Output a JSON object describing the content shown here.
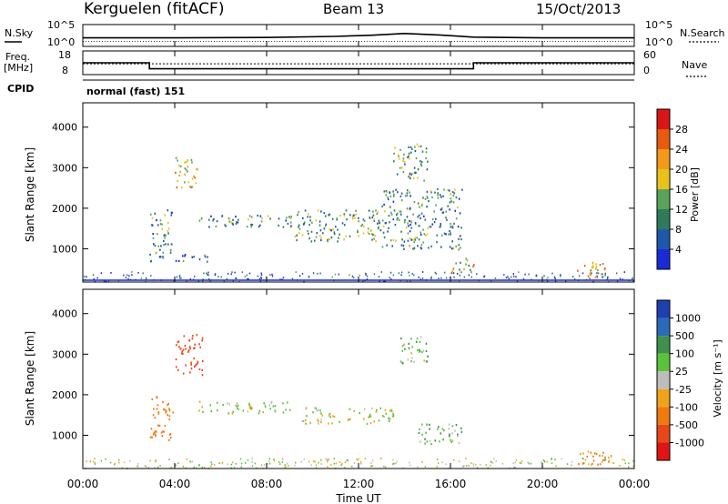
{
  "header": {
    "site": "Kerguelen (fitACF)",
    "beam": "Beam 13",
    "date": "15/Oct/2013"
  },
  "noise_panel": {
    "left_label": "N.Sky",
    "right_label": "N.Search",
    "left_ticks": [
      "10^5",
      "10^0"
    ],
    "right_ticks": [
      "10^5",
      "10^0"
    ]
  },
  "freq_panel": {
    "left_label_line1": "Freq.",
    "left_label_line2": "[MHz]",
    "right_label": "Nave",
    "left_ticks": [
      "18",
      "8"
    ],
    "right_ticks": [
      "60",
      "0"
    ],
    "cpid_label": "CPID",
    "cpid_value": "normal (fast) 151"
  },
  "x_axis": {
    "tick_labels": [
      "00:00",
      "04:00",
      "08:00",
      "12:00",
      "16:00",
      "20:00",
      "00:00"
    ],
    "title": "Time UT"
  },
  "power_panel": {
    "ylabel": "Slant Range [km]",
    "yticks": [
      "1000",
      "2000",
      "3000",
      "4000"
    ],
    "colorbar_label": "Power [dB]",
    "colorbar_ticks": [
      "4",
      "8",
      "12",
      "16",
      "20",
      "24",
      "28"
    ],
    "colors": [
      "#1a2bd6",
      "#1f58a8",
      "#2f7a5a",
      "#5aa35a",
      "#e8c21a",
      "#f39a1b",
      "#e85a10",
      "#d81616"
    ]
  },
  "velocity_panel": {
    "ylabel": "Slant Range [km]",
    "yticks": [
      "1000",
      "2000",
      "3000",
      "4000"
    ],
    "colorbar_label": "Velocity [m s⁻¹]",
    "colorbar_ticks": [
      "1000",
      "500",
      "100",
      "25",
      "-25",
      "-100",
      "-500",
      "-1000"
    ],
    "colors": [
      "#1d3fb0",
      "#2b6ab8",
      "#3f8f4f",
      "#59c43a",
      "#bdbdbd",
      "#f0a21a",
      "#ef7a10",
      "#e84818",
      "#e01414"
    ]
  },
  "chart_data": [
    {
      "type": "line",
      "title": "Kerguelen (fitACF) Beam 13 15/Oct/2013",
      "xlabel": "Time UT",
      "x_range": [
        "00:00",
        "24:00"
      ],
      "series": [
        {
          "name": "N.Sky",
          "x_hours": [
            0,
            4,
            8,
            11,
            12.5,
            14,
            15.5,
            17,
            20,
            24
          ],
          "values_log10": [
            1.2,
            1.2,
            1.3,
            1.6,
            1.9,
            2.4,
            2.0,
            1.4,
            1.2,
            1.2
          ]
        },
        {
          "name": "N.Search",
          "x_hours": [
            0,
            24
          ],
          "values_log10": [
            0.9,
            0.9
          ]
        }
      ],
      "ylim_log10": [
        0,
        5
      ]
    },
    {
      "type": "line",
      "series": [
        {
          "name": "Freq.",
          "unit": "MHz",
          "x_hours": [
            0,
            2.9,
            2.9,
            17.0,
            17.0,
            24
          ],
          "values": [
            13,
            13,
            10,
            10,
            13,
            13
          ]
        },
        {
          "name": "Nave",
          "x_hours": [
            0,
            24
          ],
          "values": [
            27,
            27
          ]
        }
      ],
      "freq_ylim": [
        8,
        18
      ],
      "nave_ylim": [
        0,
        60
      ],
      "cpid": "normal (fast) 151"
    },
    {
      "type": "heatmap",
      "quantity": "Power",
      "unit": "dB",
      "ylabel": "Slant Range [km]",
      "xlim_hours": [
        0,
        24
      ],
      "ylim_km": [
        180,
        4600
      ],
      "color_range": [
        0,
        30
      ],
      "regions": [
        {
          "t": [
            2.9,
            3.9
          ],
          "r": [
            700,
            2000
          ],
          "v": 10
        },
        {
          "t": [
            3.9,
            5.5
          ],
          "r": [
            700,
            900
          ],
          "v": 6
        },
        {
          "t": [
            4.0,
            5.0
          ],
          "r": [
            2500,
            3300
          ],
          "v": 20
        },
        {
          "t": [
            5.0,
            9.0
          ],
          "r": [
            1550,
            1850
          ],
          "v": 10
        },
        {
          "t": [
            9.0,
            13.0
          ],
          "r": [
            1200,
            2000
          ],
          "v": 12
        },
        {
          "t": [
            13.0,
            16.5
          ],
          "r": [
            1000,
            2500
          ],
          "v": 10
        },
        {
          "t": [
            13.5,
            15.0
          ],
          "r": [
            2700,
            3600
          ],
          "v": 12
        },
        {
          "t": [
            16.0,
            17.0
          ],
          "r": [
            400,
            800
          ],
          "v": 18
        },
        {
          "t": [
            21.5,
            23.0
          ],
          "r": [
            300,
            700
          ],
          "v": 20
        }
      ]
    },
    {
      "type": "heatmap",
      "quantity": "Velocity",
      "unit": "m s^-1",
      "ylabel": "Slant Range [km]",
      "xlim_hours": [
        0,
        24
      ],
      "ylim_km": [
        180,
        4600
      ],
      "color_levels": [
        1000,
        500,
        100,
        25,
        -25,
        -100,
        -500,
        -1000
      ],
      "regions": [
        {
          "t": [
            2.9,
            3.9
          ],
          "r": [
            900,
            2000
          ],
          "v": -300
        },
        {
          "t": [
            4.0,
            5.2
          ],
          "r": [
            2500,
            3500
          ],
          "v": -600
        },
        {
          "t": [
            5.0,
            9.0
          ],
          "r": [
            1550,
            1850
          ],
          "v": 0
        },
        {
          "t": [
            9.5,
            13.5
          ],
          "r": [
            1300,
            1700
          ],
          "v": 0
        },
        {
          "t": [
            14.5,
            16.5
          ],
          "r": [
            800,
            1300
          ],
          "v": 60
        },
        {
          "t": [
            13.8,
            15.0
          ],
          "r": [
            2800,
            3500
          ],
          "v": 60
        },
        {
          "t": [
            21.5,
            23.0
          ],
          "r": [
            300,
            700
          ],
          "v": -150
        }
      ]
    }
  ]
}
